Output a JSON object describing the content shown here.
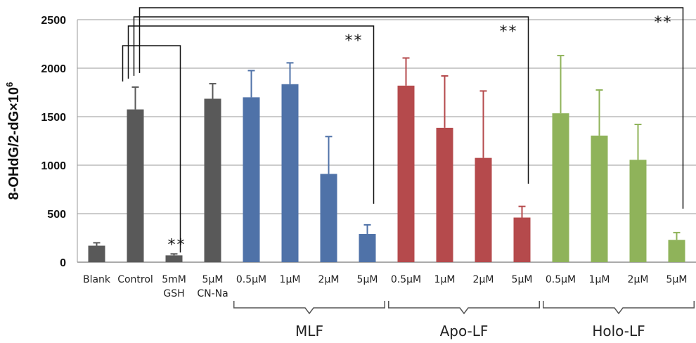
{
  "chart_data": {
    "type": "bar",
    "ylabel": "8-OHdG/2-dG×10",
    "ylabel_sup": "6",
    "ylim": [
      0,
      2500
    ],
    "yticks": [
      "0",
      "500",
      "1000",
      "1500",
      "2000",
      "2500"
    ],
    "grid": true,
    "categories": [
      [
        "Blank"
      ],
      [
        "Control"
      ],
      [
        "5mM",
        "GSH"
      ],
      [
        "5μM",
        "CN-Na"
      ],
      [
        "0.5μM"
      ],
      [
        "1μM"
      ],
      [
        "2μM"
      ],
      [
        "5μM"
      ],
      [
        "0.5μM"
      ],
      [
        "1μM"
      ],
      [
        "2μM"
      ],
      [
        "5μM"
      ],
      [
        "0.5μM"
      ],
      [
        "1μM"
      ],
      [
        "2μM"
      ],
      [
        "5μM"
      ]
    ],
    "values": [
      170,
      1575,
      70,
      1685,
      1700,
      1835,
      910,
      290,
      1820,
      1385,
      1075,
      460,
      1535,
      1305,
      1055,
      230
    ],
    "errors": [
      30,
      230,
      15,
      155,
      275,
      220,
      385,
      95,
      285,
      535,
      690,
      115,
      595,
      470,
      365,
      75
    ],
    "colors": [
      "#595959",
      "#595959",
      "#595959",
      "#595959",
      "#4f72a8",
      "#4f72a8",
      "#4f72a8",
      "#4f72a8",
      "#b54a4c",
      "#b54a4c",
      "#b54a4c",
      "#b54a4c",
      "#8fb35a",
      "#8fb35a",
      "#8fb35a",
      "#8fb35a"
    ],
    "groups": [
      {
        "label": "MLF",
        "from": 4,
        "to": 7
      },
      {
        "label": "Apo-LF",
        "from": 8,
        "to": 11
      },
      {
        "label": "Holo-LF",
        "from": 12,
        "to": 15
      }
    ],
    "significance": [
      {
        "text": "**",
        "from": 1,
        "to": 2,
        "level": 0
      },
      {
        "text": "**",
        "from": 1,
        "to": 7,
        "level": 1
      },
      {
        "text": "**",
        "from": 1,
        "to": 11,
        "level": 2
      },
      {
        "text": "**",
        "from": 1,
        "to": 15,
        "level": 3
      }
    ]
  }
}
